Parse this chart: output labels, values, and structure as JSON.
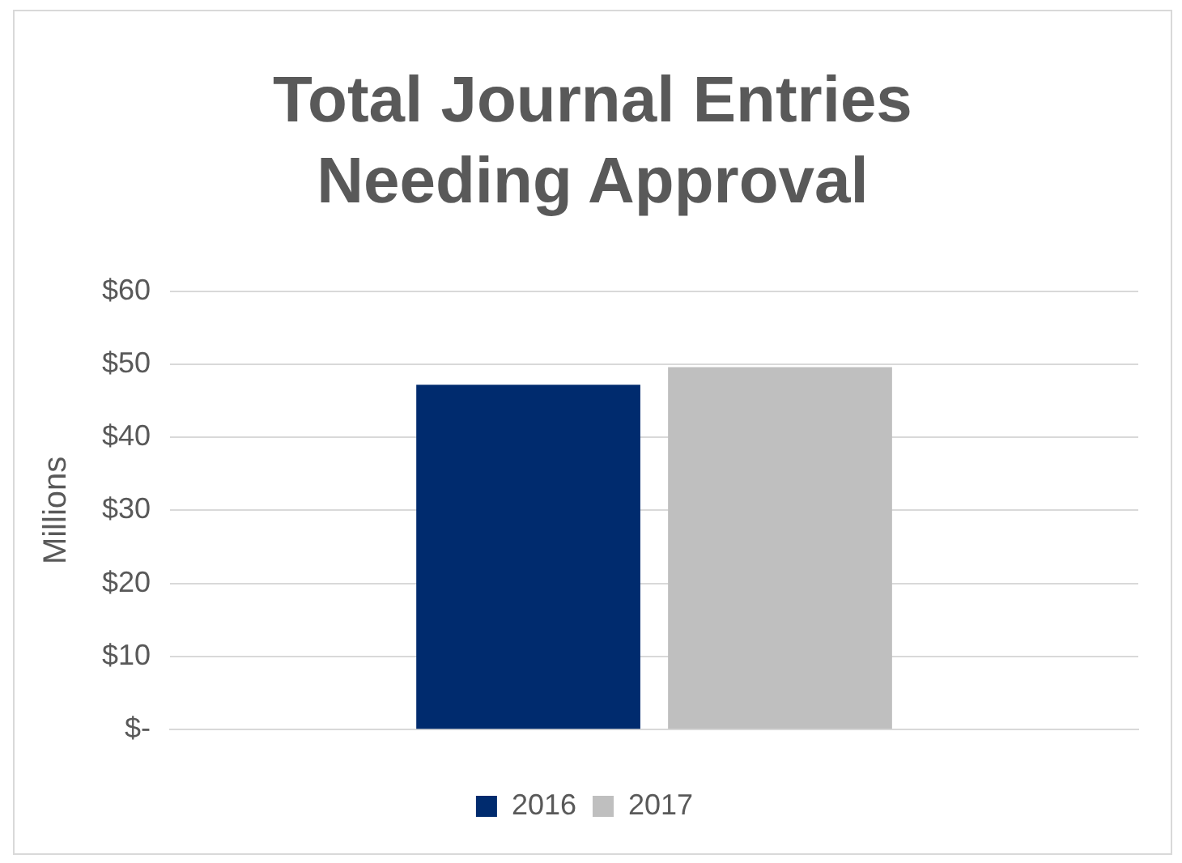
{
  "chart_data": {
    "type": "bar",
    "title": "Total Journal Entries Needing Approval",
    "ylabel": "Millions",
    "categories": [
      null
    ],
    "series": [
      {
        "name": "2016",
        "color": "#002b6e",
        "values": [
          47.2
        ]
      },
      {
        "name": "2017",
        "color": "#bfbfbf",
        "values": [
          49.6
        ]
      }
    ],
    "ylim": [
      0,
      60
    ],
    "yticks": [
      {
        "value": 0,
        "label": "$-"
      },
      {
        "value": 10,
        "label": "$10"
      },
      {
        "value": 20,
        "label": "$20"
      },
      {
        "value": 30,
        "label": "$30"
      },
      {
        "value": 40,
        "label": "$40"
      },
      {
        "value": 50,
        "label": "$50"
      },
      {
        "value": 60,
        "label": "$60"
      }
    ],
    "grid": "y",
    "legend": "bottom"
  }
}
